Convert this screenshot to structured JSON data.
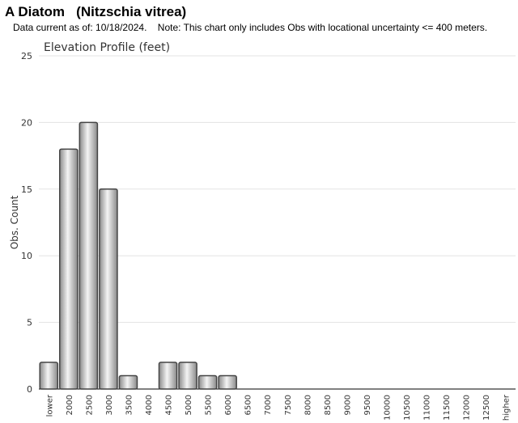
{
  "header": {
    "title": "A Diatom   (Nitzschia vitrea)",
    "subtitle": "Data current as of: 10/18/2024.    Note: This chart only includes Obs with locational uncertainty <= 400 meters."
  },
  "chart_data": {
    "type": "bar",
    "title": "Elevation Profile (feet)",
    "y_label": "Obs. Count",
    "categories": [
      "lower",
      "2000",
      "2500",
      "3000",
      "3500",
      "4000",
      "4500",
      "5000",
      "5500",
      "6000",
      "6500",
      "7000",
      "7500",
      "8000",
      "8500",
      "9000",
      "9500",
      "10000",
      "10500",
      "11000",
      "11500",
      "12000",
      "12500",
      "higher"
    ],
    "values": [
      2,
      18,
      20,
      15,
      1,
      0,
      2,
      2,
      1,
      1,
      0,
      0,
      0,
      0,
      0,
      0,
      0,
      0,
      0,
      0,
      0,
      0,
      0,
      0
    ],
    "color": "#8a8a8a",
    "ylim": [
      0,
      25
    ],
    "yticks": [
      0,
      5,
      10,
      15,
      20,
      25
    ],
    "grid": true
  }
}
